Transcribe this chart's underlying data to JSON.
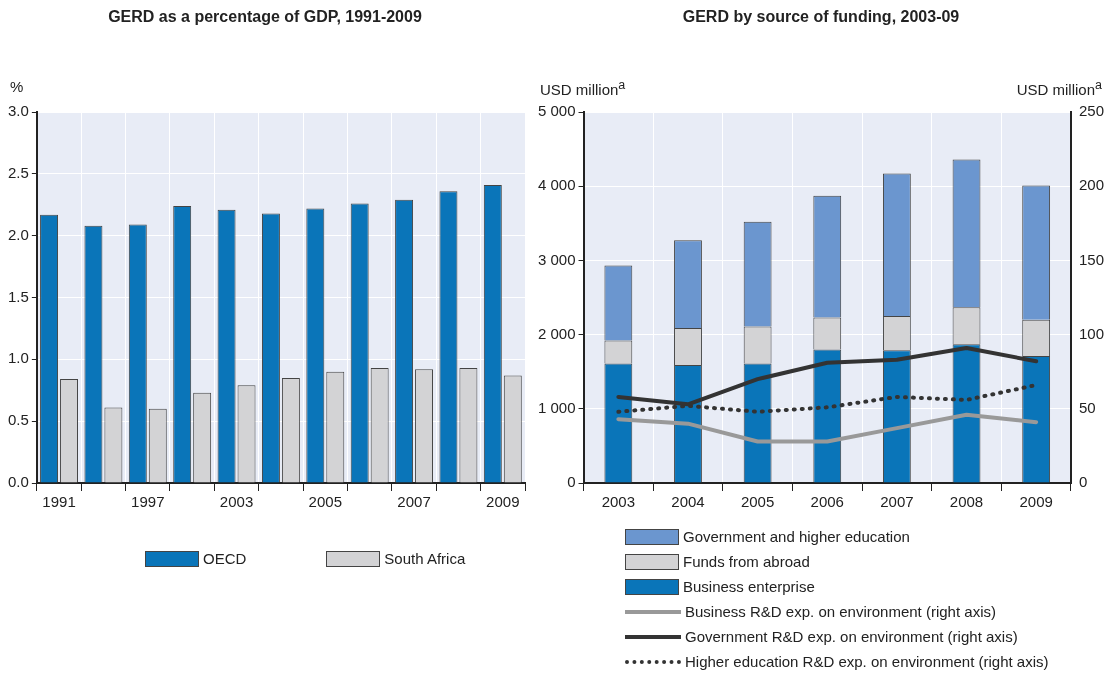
{
  "chart_data": [
    {
      "type": "bar",
      "title": "GERD as a percentage of GDP, 1991-2009",
      "ylabel": "%",
      "categories": [
        "1991",
        null,
        "1997",
        null,
        "2003",
        null,
        "2005",
        null,
        "2007",
        null,
        "2009"
      ],
      "series": [
        {
          "name": "OECD",
          "color": "#0a75b9",
          "values": [
            2.17,
            2.08,
            2.09,
            2.24,
            2.21,
            2.18,
            2.22,
            2.26,
            2.29,
            2.36,
            2.41
          ]
        },
        {
          "name": "South Africa",
          "color": "#d3d3d5",
          "values": [
            0.84,
            0.61,
            0.6,
            0.73,
            0.79,
            0.85,
            0.9,
            0.93,
            0.92,
            0.93,
            0.87
          ]
        }
      ],
      "ylim": [
        0,
        3
      ],
      "yticks": [
        {
          "value": 0,
          "label": "0.0"
        },
        0.5,
        {
          "value": 1,
          "label": "1.0"
        },
        1.5,
        {
          "value": 2,
          "label": "2.0"
        },
        2.5,
        {
          "value": 3,
          "label": "3.0"
        }
      ],
      "grid": true,
      "legend": "bottom"
    },
    {
      "type": "bar",
      "title": "GERD by source of funding, 2003-09",
      "ylabel": "USD million$^{a}$",
      "y2label": "USD million$^{a}$",
      "categories": [
        "2003",
        "2004",
        "2005",
        "2006",
        "2007",
        "2008",
        "2009"
      ],
      "stacked": true,
      "series": [
        {
          "name": "Business enterprise",
          "color": "#0a75b9",
          "values": [
            1610,
            1590,
            1610,
            1800,
            1790,
            1870,
            1710
          ]
        },
        {
          "name": "Funds from abroad",
          "color": "#d3d3d5",
          "values": [
            310,
            500,
            500,
            430,
            460,
            500,
            490
          ]
        },
        {
          "name": "Government and higher education",
          "color": "#6b96cf",
          "values": [
            1010,
            1180,
            1410,
            1640,
            1920,
            1990,
            1810
          ]
        },
        {
          "name": "Business R&D exp. on environment (right axis)",
          "type": "line",
          "axis": "y2",
          "color": "#999999",
          "line_style": "solid",
          "values": [
            43,
            40,
            28,
            28,
            37,
            46,
            41
          ]
        },
        {
          "name": "Government R&D exp. on environment (right axis)",
          "type": "line",
          "axis": "y2",
          "color": "#333333",
          "line_style": "solid",
          "values": [
            58,
            53,
            70,
            81,
            83,
            91,
            82
          ]
        },
        {
          "name": "Higher education R&D exp. on environment (right axis)",
          "type": "line",
          "axis": "y2",
          "color": "#333333",
          "line_style": "dotted",
          "values": [
            48,
            52,
            48,
            51,
            58,
            56,
            66
          ]
        }
      ],
      "marker": "none",
      "ylim": [
        0,
        5000
      ],
      "yticks": [
        0,
        {
          "value": 1000,
          "label": "1 000"
        },
        {
          "value": 2000,
          "label": "2 000"
        },
        {
          "value": 3000,
          "label": "3 000"
        },
        {
          "value": 4000,
          "label": "4 000"
        },
        {
          "value": 5000,
          "label": "5 000"
        }
      ],
      "y2lim": [
        0,
        250
      ],
      "y2ticks": [
        0,
        50,
        100,
        150,
        200,
        250
      ],
      "grid": true,
      "legend": "bottom"
    }
  ]
}
